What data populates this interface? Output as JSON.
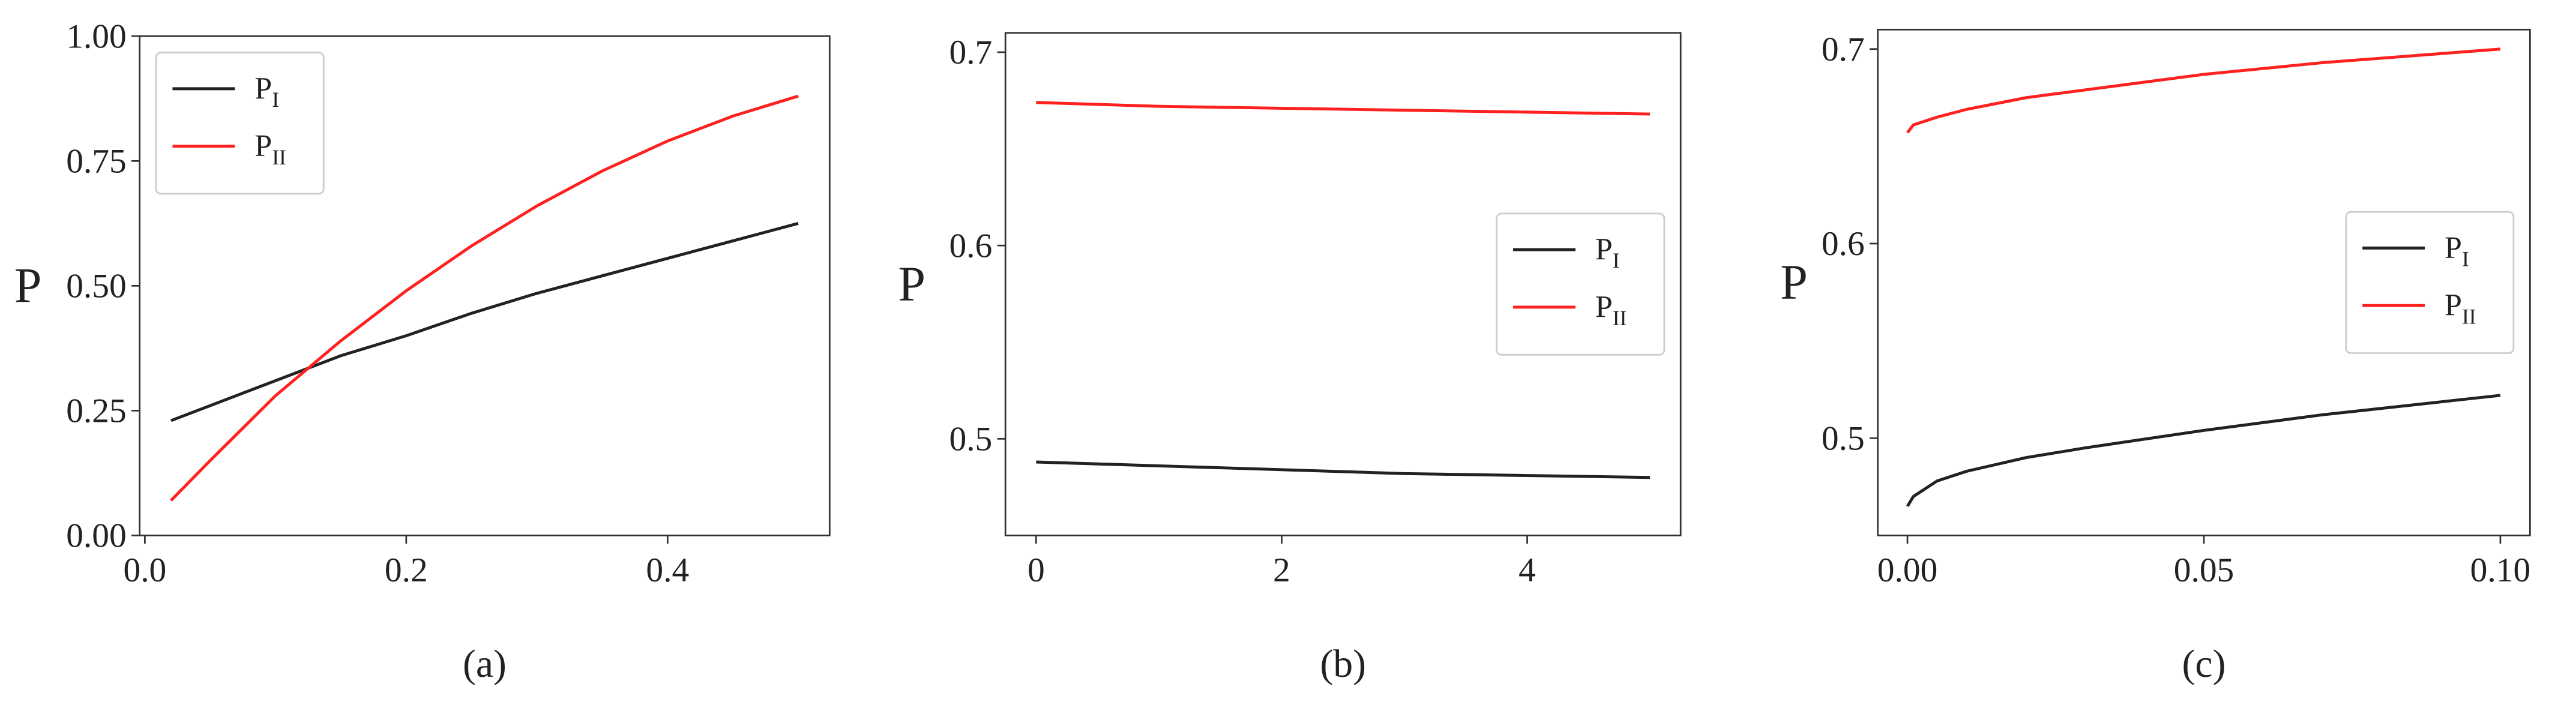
{
  "chart_data": [
    {
      "type": "line",
      "caption": "(a)",
      "ylabel": "P",
      "legend": "upper left",
      "x": [
        0.02,
        0.05,
        0.1,
        0.15,
        0.2,
        0.25,
        0.3,
        0.35,
        0.4,
        0.45,
        0.5
      ],
      "series": [
        {
          "name": "P",
          "subscript": "I",
          "color": "#222222",
          "values": [
            0.23,
            0.26,
            0.31,
            0.36,
            0.4,
            0.445,
            0.485,
            0.52,
            0.555,
            0.59,
            0.625
          ]
        },
        {
          "name": "P",
          "subscript": "II",
          "color": "#ff2020",
          "values": [
            0.07,
            0.15,
            0.28,
            0.39,
            0.49,
            0.58,
            0.66,
            0.73,
            0.79,
            0.84,
            0.88
          ]
        }
      ],
      "xlim": [
        -0.004,
        0.524
      ],
      "ylim": [
        0,
        1.0
      ],
      "xticks": [
        {
          "value": 0,
          "label": "0.0"
        },
        {
          "value": 0.2,
          "label": "0.2"
        },
        {
          "value": 0.4,
          "label": "0.4"
        }
      ],
      "yticks": [
        {
          "value": 0,
          "label": "0.00"
        },
        {
          "value": 0.25,
          "label": "0.25"
        },
        {
          "value": 0.5,
          "label": "0.50"
        },
        {
          "value": 0.75,
          "label": "0.75"
        },
        {
          "value": 1.0,
          "label": "1.00"
        }
      ]
    },
    {
      "type": "line",
      "caption": "(b)",
      "ylabel": "P",
      "legend": "center right",
      "x": [
        0,
        1,
        2,
        3,
        4,
        5
      ],
      "series": [
        {
          "name": "P",
          "subscript": "I",
          "color": "#222222",
          "values": [
            0.488,
            0.486,
            0.484,
            0.482,
            0.481,
            0.48
          ]
        },
        {
          "name": "P",
          "subscript": "II",
          "color": "#ff2020",
          "values": [
            0.674,
            0.672,
            0.671,
            0.67,
            0.669,
            0.668
          ]
        }
      ],
      "xlim": [
        -0.25,
        5.25
      ],
      "ylim": [
        0.45,
        0.71
      ],
      "xticks": [
        0,
        2,
        4
      ],
      "yticks": [
        0.5,
        0.6,
        0.7
      ]
    },
    {
      "type": "line",
      "caption": "(c)",
      "ylabel": "P",
      "legend": "center right",
      "x": [
        0,
        0.001,
        0.005,
        0.01,
        0.02,
        0.03,
        0.05,
        0.07,
        0.1
      ],
      "series": [
        {
          "name": "P",
          "subscript": "I",
          "color": "#222222",
          "values": [
            0.465,
            0.47,
            0.478,
            0.483,
            0.49,
            0.495,
            0.504,
            0.512,
            0.522
          ]
        },
        {
          "name": "P",
          "subscript": "II",
          "color": "#ff2020",
          "values": [
            0.657,
            0.661,
            0.665,
            0.669,
            0.675,
            0.679,
            0.687,
            0.693,
            0.7
          ]
        }
      ],
      "xlim": [
        -0.005,
        0.105
      ],
      "ylim": [
        0.45,
        0.71
      ],
      "xticks": [
        {
          "value": 0,
          "label": "0.00"
        },
        {
          "value": 0.05,
          "label": "0.05"
        },
        {
          "value": 0.1,
          "label": "0.10"
        }
      ],
      "yticks": [
        0.5,
        0.6,
        0.7
      ]
    }
  ]
}
